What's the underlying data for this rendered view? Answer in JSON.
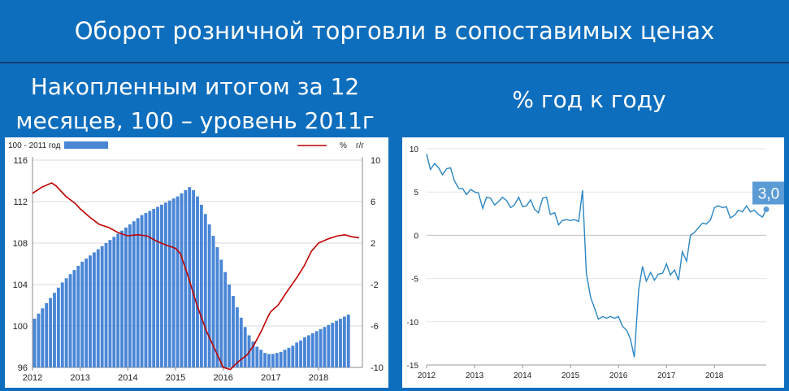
{
  "header": {
    "title": "Оборот розничной торговли в сопоставимых ценах"
  },
  "left_panel": {
    "subtitle_line1": "Накопленным итогом за 12",
    "subtitle_line2": "месяцев, 100 – уровень 2011г"
  },
  "right_panel": {
    "subtitle": "% год к году"
  },
  "colors": {
    "background": "#0e6ebe",
    "bars": "#4a86d6",
    "red_line": "#c00000",
    "blue_line": "#2b86c3",
    "label_box": "#5b9bd5"
  },
  "chart_data": [
    {
      "type": "bar",
      "legend": {
        "bars": "100 - 2011 год",
        "line_percent": "%",
        "line_yy": "г/г"
      },
      "x_ticks": [
        "2012",
        "2013",
        "2014",
        "2015",
        "2016",
        "2017",
        "2018"
      ],
      "y_left_ticks": [
        "96",
        "100",
        "104",
        "108",
        "112",
        "116"
      ],
      "y_right_ticks": [
        "-10",
        "-6",
        "-2",
        "2",
        "6",
        "10"
      ],
      "ylim_left": [
        96,
        116
      ],
      "ylim_right": [
        -10,
        10
      ],
      "series": [
        {
          "name": "100 - 2011 год",
          "type": "bar",
          "axis": "left",
          "x_start": 2012.0,
          "step": 0.08333,
          "values": [
            100.7,
            101.2,
            101.7,
            102.2,
            102.7,
            103.2,
            103.7,
            104.2,
            104.6,
            105.0,
            105.4,
            105.8,
            106.2,
            106.5,
            106.8,
            107.1,
            107.4,
            107.7,
            108.0,
            108.3,
            108.6,
            108.9,
            109.2,
            109.5,
            109.8,
            110.1,
            110.4,
            110.7,
            110.9,
            111.1,
            111.3,
            111.5,
            111.7,
            111.9,
            112.1,
            112.3,
            112.5,
            112.8,
            113.1,
            113.4,
            113.1,
            112.5,
            111.7,
            110.8,
            109.8,
            108.7,
            107.6,
            106.4,
            105.2,
            104.0,
            102.9,
            101.8,
            100.8,
            99.9,
            99.1,
            98.5,
            98.0,
            97.7,
            97.4,
            97.3,
            97.3,
            97.4,
            97.5,
            97.7,
            97.9,
            98.1,
            98.4,
            98.6,
            98.9,
            99.1,
            99.3,
            99.5,
            99.7,
            99.9,
            100.1,
            100.3,
            100.5,
            100.7,
            100.9,
            101.1
          ]
        },
        {
          "name": "% г/г",
          "type": "line",
          "axis": "right",
          "points": [
            [
              2012.0,
              6.8
            ],
            [
              2012.2,
              7.4
            ],
            [
              2012.4,
              7.8
            ],
            [
              2012.5,
              7.5
            ],
            [
              2012.7,
              6.5
            ],
            [
              2012.9,
              5.8
            ],
            [
              2013.0,
              5.3
            ],
            [
              2013.2,
              4.5
            ],
            [
              2013.4,
              3.8
            ],
            [
              2013.6,
              3.5
            ],
            [
              2013.8,
              3.0
            ],
            [
              2014.0,
              2.7
            ],
            [
              2014.2,
              2.8
            ],
            [
              2014.4,
              2.7
            ],
            [
              2014.6,
              2.2
            ],
            [
              2014.8,
              1.8
            ],
            [
              2015.0,
              1.5
            ],
            [
              2015.1,
              1.0
            ],
            [
              2015.25,
              -1.0
            ],
            [
              2015.45,
              -4.0
            ],
            [
              2015.65,
              -6.5
            ],
            [
              2015.85,
              -8.5
            ],
            [
              2016.0,
              -10.0
            ],
            [
              2016.15,
              -10.2
            ],
            [
              2016.3,
              -9.5
            ],
            [
              2016.5,
              -8.8
            ],
            [
              2016.65,
              -7.8
            ],
            [
              2016.8,
              -6.5
            ],
            [
              2016.95,
              -5.0
            ],
            [
              2017.0,
              -4.6
            ],
            [
              2017.15,
              -4.0
            ],
            [
              2017.35,
              -2.6
            ],
            [
              2017.55,
              -1.3
            ],
            [
              2017.7,
              -0.2
            ],
            [
              2017.85,
              1.2
            ],
            [
              2018.0,
              2.0
            ],
            [
              2018.2,
              2.4
            ],
            [
              2018.4,
              2.7
            ],
            [
              2018.55,
              2.8
            ],
            [
              2018.7,
              2.6
            ],
            [
              2018.85,
              2.5
            ]
          ]
        }
      ]
    },
    {
      "type": "line",
      "x_ticks": [
        "2012",
        "2013",
        "2014",
        "2015",
        "2016",
        "2017",
        "2018"
      ],
      "y_ticks": [
        "-15",
        "-10",
        "-5",
        "0",
        "5",
        "10"
      ],
      "ylim": [
        -15,
        10
      ],
      "last_value_label": "3,0",
      "series": [
        {
          "name": "% год к году",
          "points": [
            [
              2012.0,
              9.4
            ],
            [
              2012.08,
              7.6
            ],
            [
              2012.17,
              8.3
            ],
            [
              2012.25,
              7.8
            ],
            [
              2012.33,
              7.0
            ],
            [
              2012.42,
              7.7
            ],
            [
              2012.5,
              7.8
            ],
            [
              2012.58,
              6.3
            ],
            [
              2012.67,
              5.4
            ],
            [
              2012.75,
              5.4
            ],
            [
              2012.83,
              4.7
            ],
            [
              2012.92,
              5.3
            ],
            [
              2013.0,
              5.0
            ],
            [
              2013.08,
              4.9
            ],
            [
              2013.17,
              3.1
            ],
            [
              2013.25,
              4.4
            ],
            [
              2013.33,
              4.3
            ],
            [
              2013.42,
              3.5
            ],
            [
              2013.5,
              3.9
            ],
            [
              2013.58,
              4.4
            ],
            [
              2013.67,
              4.0
            ],
            [
              2013.75,
              3.2
            ],
            [
              2013.83,
              3.5
            ],
            [
              2013.92,
              4.4
            ],
            [
              2014.0,
              3.3
            ],
            [
              2014.08,
              3.4
            ],
            [
              2014.17,
              4.1
            ],
            [
              2014.25,
              3.0
            ],
            [
              2014.33,
              2.6
            ],
            [
              2014.42,
              4.3
            ],
            [
              2014.5,
              4.4
            ],
            [
              2014.58,
              2.4
            ],
            [
              2014.67,
              2.6
            ],
            [
              2014.75,
              1.2
            ],
            [
              2014.83,
              1.7
            ],
            [
              2014.92,
              1.8
            ],
            [
              2015.0,
              1.7
            ],
            [
              2015.08,
              1.8
            ],
            [
              2015.17,
              1.6
            ],
            [
              2015.25,
              5.2
            ],
            [
              2015.33,
              -4.4
            ],
            [
              2015.42,
              -7.2
            ],
            [
              2015.5,
              -8.4
            ],
            [
              2015.58,
              -9.7
            ],
            [
              2015.67,
              -9.4
            ],
            [
              2015.75,
              -9.6
            ],
            [
              2015.83,
              -9.4
            ],
            [
              2015.92,
              -9.6
            ],
            [
              2016.0,
              -9.4
            ],
            [
              2016.08,
              -10.5
            ],
            [
              2016.17,
              -11.0
            ],
            [
              2016.25,
              -12.0
            ],
            [
              2016.33,
              -14.1
            ],
            [
              2016.42,
              -6.3
            ],
            [
              2016.5,
              -3.6
            ],
            [
              2016.58,
              -5.3
            ],
            [
              2016.67,
              -4.3
            ],
            [
              2016.75,
              -5.2
            ],
            [
              2016.83,
              -4.5
            ],
            [
              2016.92,
              -4.4
            ],
            [
              2017.0,
              -3.3
            ],
            [
              2017.08,
              -4.6
            ],
            [
              2017.17,
              -4.0
            ],
            [
              2017.25,
              -5.2
            ],
            [
              2017.33,
              -1.9
            ],
            [
              2017.42,
              -3.0
            ],
            [
              2017.5,
              -0.0
            ],
            [
              2017.58,
              0.3
            ],
            [
              2017.67,
              0.9
            ],
            [
              2017.75,
              1.4
            ],
            [
              2017.83,
              1.3
            ],
            [
              2017.92,
              1.8
            ],
            [
              2018.0,
              3.2
            ],
            [
              2018.08,
              3.4
            ],
            [
              2018.17,
              3.2
            ],
            [
              2018.25,
              3.3
            ],
            [
              2018.33,
              2.0
            ],
            [
              2018.42,
              2.3
            ],
            [
              2018.5,
              2.9
            ],
            [
              2018.58,
              2.7
            ],
            [
              2018.67,
              3.4
            ],
            [
              2018.75,
              2.7
            ],
            [
              2018.83,
              2.9
            ],
            [
              2018.92,
              2.4
            ],
            [
              2019.0,
              2.1
            ],
            [
              2019.08,
              3.0
            ]
          ]
        }
      ]
    }
  ]
}
